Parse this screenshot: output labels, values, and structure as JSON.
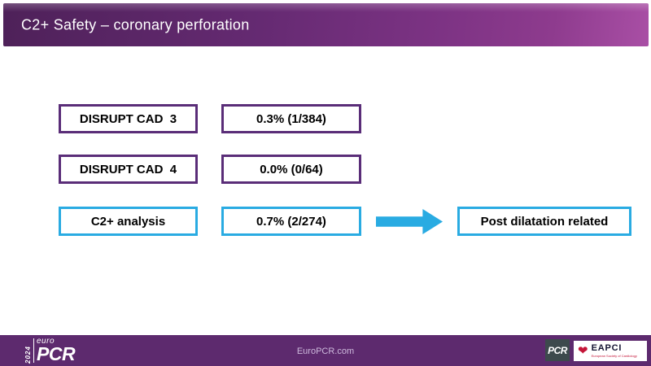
{
  "slide": {
    "title": "C2+ Safety – coronary perforation"
  },
  "rows": [
    {
      "label": "DISRUPT CAD  3",
      "value": "0.3% (1/384)",
      "style": "purple"
    },
    {
      "label": "DISRUPT CAD  4",
      "value": "0.0% (0/64)",
      "style": "purple"
    },
    {
      "label": "C2+ analysis",
      "value": "0.7% (2/274)",
      "style": "cyan"
    }
  ],
  "annotation": {
    "arrow": "right-block-arrow",
    "text": "Post dilatation related"
  },
  "footer": {
    "url": "EuroPCR.com",
    "event_logo": {
      "year": "2024",
      "euro": "euro",
      "pcr": "PCR"
    },
    "pcr_badge": "PCR",
    "eapci": {
      "heart_icon": "heart-icon",
      "name": "EAPCI",
      "subtext": "European Society of Cardiology"
    }
  },
  "colors": {
    "header_gradient_start": "#4e2159",
    "header_gradient_end": "#a94fa5",
    "purple_box_border": "#5a2d78",
    "cyan_accent": "#29abe2",
    "footer_background": "#5d2a6e",
    "eapci_red": "#c41538",
    "pcr_badge_background": "#3d4a4d"
  }
}
